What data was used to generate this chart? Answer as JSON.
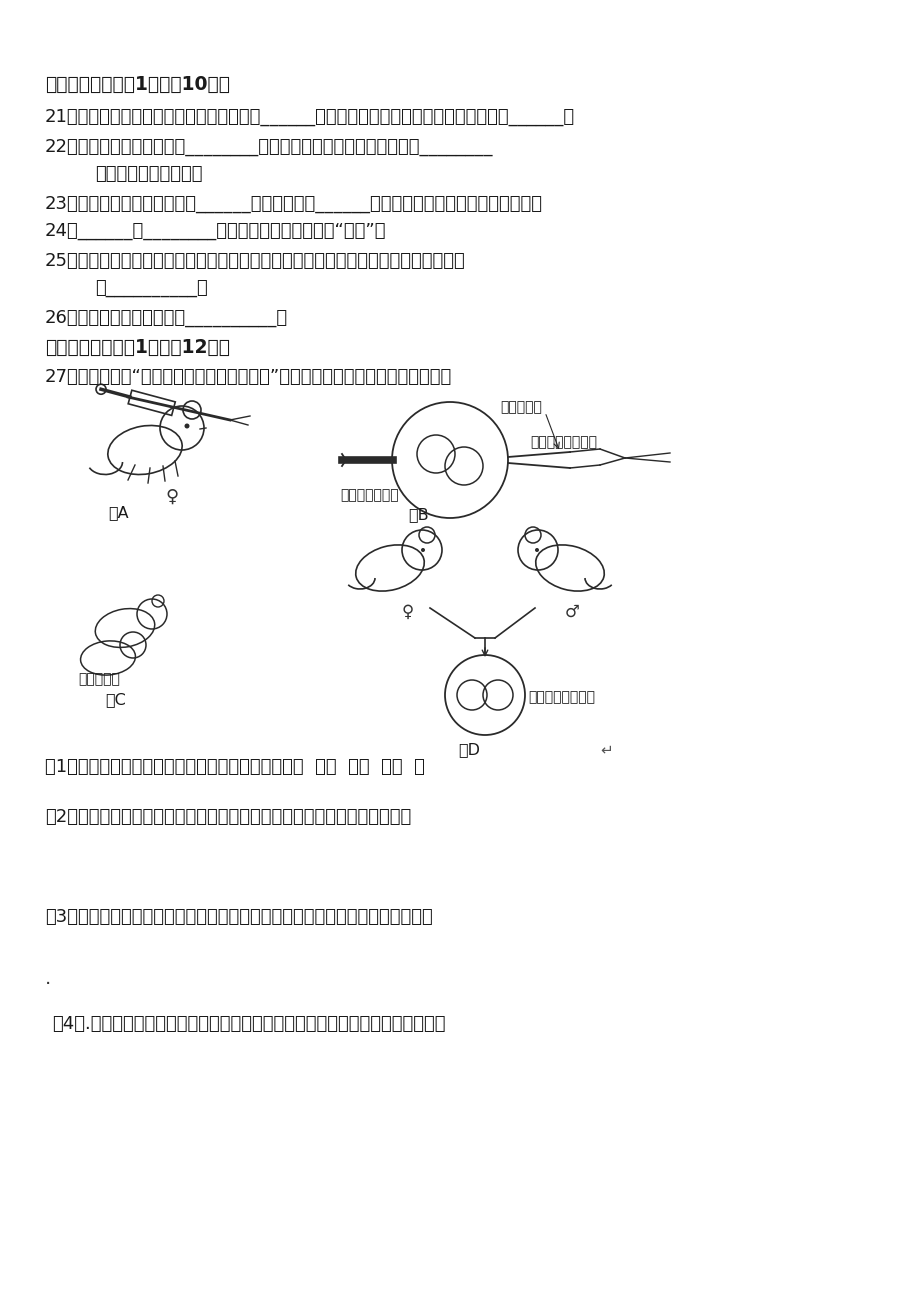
{
  "bg_color": "#ffffff",
  "text_color": "#1a1a1a",
  "section2_title": "二、填空题（每空1分，共10分）",
  "section3_title": "三、识图题（每空1分，共12分）",
  "q21": "21、由受精卵发育成新个体的生殖方式属于______，由母体直接产生新个体的生殖方式属于______。",
  "q22_line1": "22、生物的各种性状都是由________控制的。性状的实质上是亲代通过________",
  "q22_line2": "把基因传递给了子代。",
  "q23": "23、基因主要位于细胞核内的______上，染色体是______存在的，所以基因也是成对存在的。",
  "q24": "24、______和________是基因在亲子间的传递的“桥梁”。",
  "q25_line1": "25、自然界中的生物，通过激烈的生存斗争，适应着生存下来。不适应着被淘汰，这就",
  "q25_line2": "是__________。",
  "q26": "26、人类生男生女的机会是__________。",
  "q27_intro": "27、下列各图是“显微注射获得转基因超级鼠”示意图，分析图片后回答下列各问。",
  "q1_text": "（1）．请把上述图片的序号按正确顺序排列起来：（  ）（  ）（  ）（  ）",
  "q2_text": "（2）．在上图中，被研究的性状是什么？控制这个性状的基因是什么基因？",
  "q3_text": "（3）．这个实验的结果是小鼠变成了大鼠，这说明性状和基因之间是什么关系？",
  "q4_text": "（4）.由此推论，在生物传种接代过程中，传下去的是性状还是控制性状的基因？",
  "dot_text": "·",
  "fig_label_A": "图A",
  "fig_label_B": "图B",
  "fig_label_C": "图C",
  "fig_label_D": "图D",
  "label_micro": "显微注射器",
  "label_gene": "大鼠生长激素基因",
  "label_tube": "固定细胞的吸管",
  "label_pups": "生出的幼鼠",
  "label_zygote": "核未融合的受精卵",
  "female_symbol": "♀",
  "male_symbol": "♂"
}
